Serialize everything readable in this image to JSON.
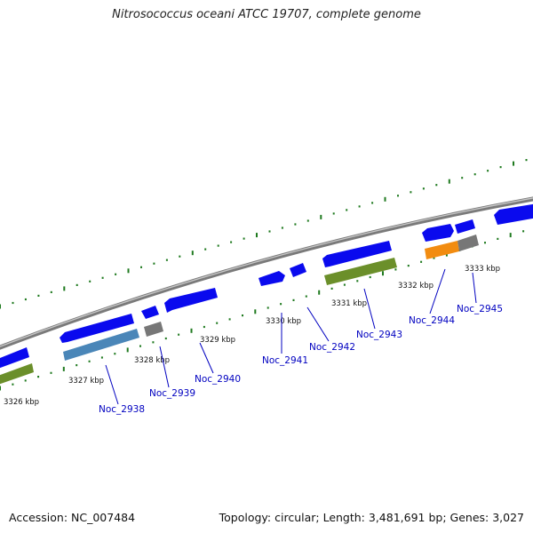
{
  "title": "Nitrosococcus oceani ATCC 19707, complete genome",
  "accession": "Accession: NC_007484",
  "summary": "Topology: circular; Length: 3,481,691 bp; Genes: 3,027",
  "colors": {
    "backbone": "#888888",
    "tick": "#1f7a1f",
    "cds": "#0a0aee",
    "rna_olive": "#6b8f2a",
    "rna_steel": "#4a86b8",
    "grey_feature": "#777777",
    "orange_feature": "#f28c10",
    "label": "#0000c0"
  },
  "scale_ticks": [
    "3326 kbp",
    "3327 kbp",
    "3328 kbp",
    "3329 kbp",
    "3330 kbp",
    "3331 kbp",
    "3332 kbp",
    "3333 kbp"
  ],
  "gene_labels": [
    "Noc_2938",
    "Noc_2939",
    "Noc_2940",
    "Noc_2941",
    "Noc_2942",
    "Noc_2943",
    "Noc_2944",
    "Noc_2945"
  ]
}
